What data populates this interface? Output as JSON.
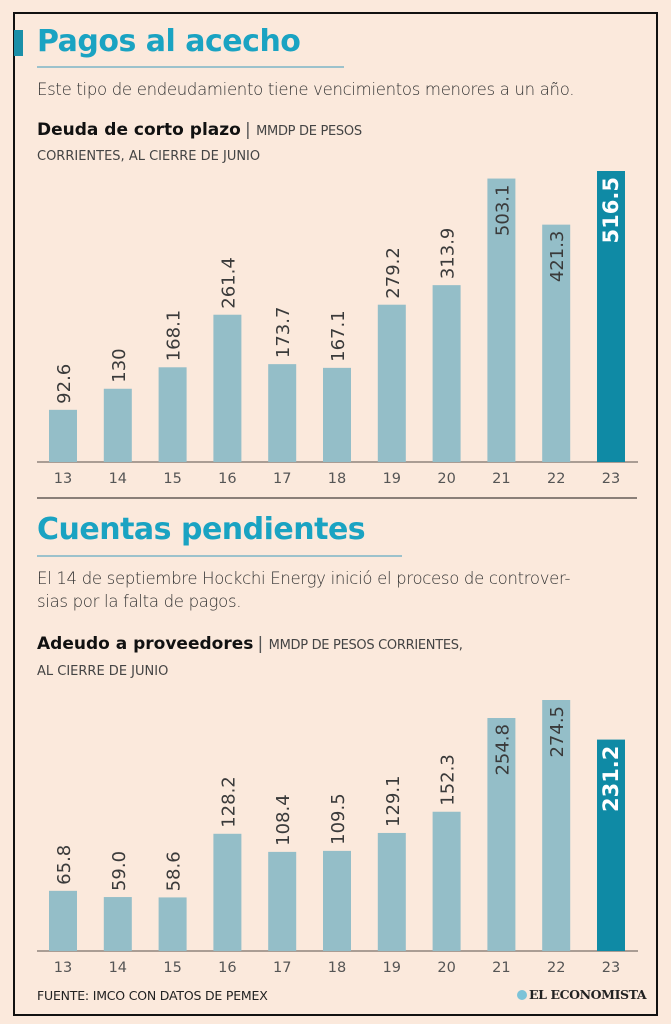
{
  "section1": {
    "title": "Pagos al acecho",
    "lede": "Este tipo de endeudamiento tiene vencimientos menores a un año.",
    "chart_title": "Deuda de corto plazo",
    "unit_line1": "MMDP DE PESOS",
    "unit_line2": "CORRIENTES, AL CIERRE DE JUNIO"
  },
  "section2": {
    "title": "Cuentas pendientes",
    "lede_line1": "El 14 de septiembre Hockchi Energy inició el proceso de controver-",
    "lede_line2": "sias por la falta de pagos.",
    "chart_title": "Adeudo a proveedores",
    "unit_line1": "MMDP DE PESOS CORRIENTES,",
    "unit_line2": "AL CIERRE DE JUNIO"
  },
  "footer": {
    "source": "FUENTE: IMCO CON DATOS DE PEMEX",
    "brand": "EL ECONOMISTA"
  },
  "colors": {
    "bar": "#94bec8",
    "highlight": "#0f8aa5",
    "title": "#1aa3c2",
    "background": "#fbe9dc"
  },
  "chart_data": [
    {
      "type": "bar",
      "title": "Deuda de corto plazo",
      "subtitle": "MMDP de pesos corrientes, al cierre de junio",
      "xlabel": "",
      "ylabel": "",
      "categories": [
        "13",
        "14",
        "15",
        "16",
        "17",
        "18",
        "19",
        "20",
        "21",
        "22",
        "23"
      ],
      "values": [
        92.6,
        130,
        168.1,
        261.4,
        173.7,
        167.1,
        279.2,
        313.9,
        503.1,
        421.3,
        516.5
      ],
      "labels": [
        "92.6",
        "130",
        "168.1",
        "261.4",
        "173.7",
        "167.1",
        "279.2",
        "313.9",
        "503.1",
        "421.3",
        "516.5"
      ],
      "highlight_index": 10,
      "ylim": [
        0,
        516.5
      ],
      "grid": false
    },
    {
      "type": "bar",
      "title": "Adeudo a proveedores",
      "subtitle": "MMDP de pesos corrientes, al cierre de junio",
      "xlabel": "",
      "ylabel": "",
      "categories": [
        "13",
        "14",
        "15",
        "16",
        "17",
        "18",
        "19",
        "20",
        "21",
        "22",
        "23"
      ],
      "values": [
        65.8,
        59.0,
        58.6,
        128.2,
        108.4,
        109.5,
        129.1,
        152.3,
        254.8,
        274.5,
        231.2
      ],
      "labels": [
        "65.8",
        "59.0",
        "58.6",
        "128.2",
        "108.4",
        "109.5",
        "129.1",
        "152.3",
        "254.8",
        "274.5",
        "231.2"
      ],
      "highlight_index": 10,
      "ylim": [
        0,
        274.5
      ],
      "grid": false
    }
  ]
}
